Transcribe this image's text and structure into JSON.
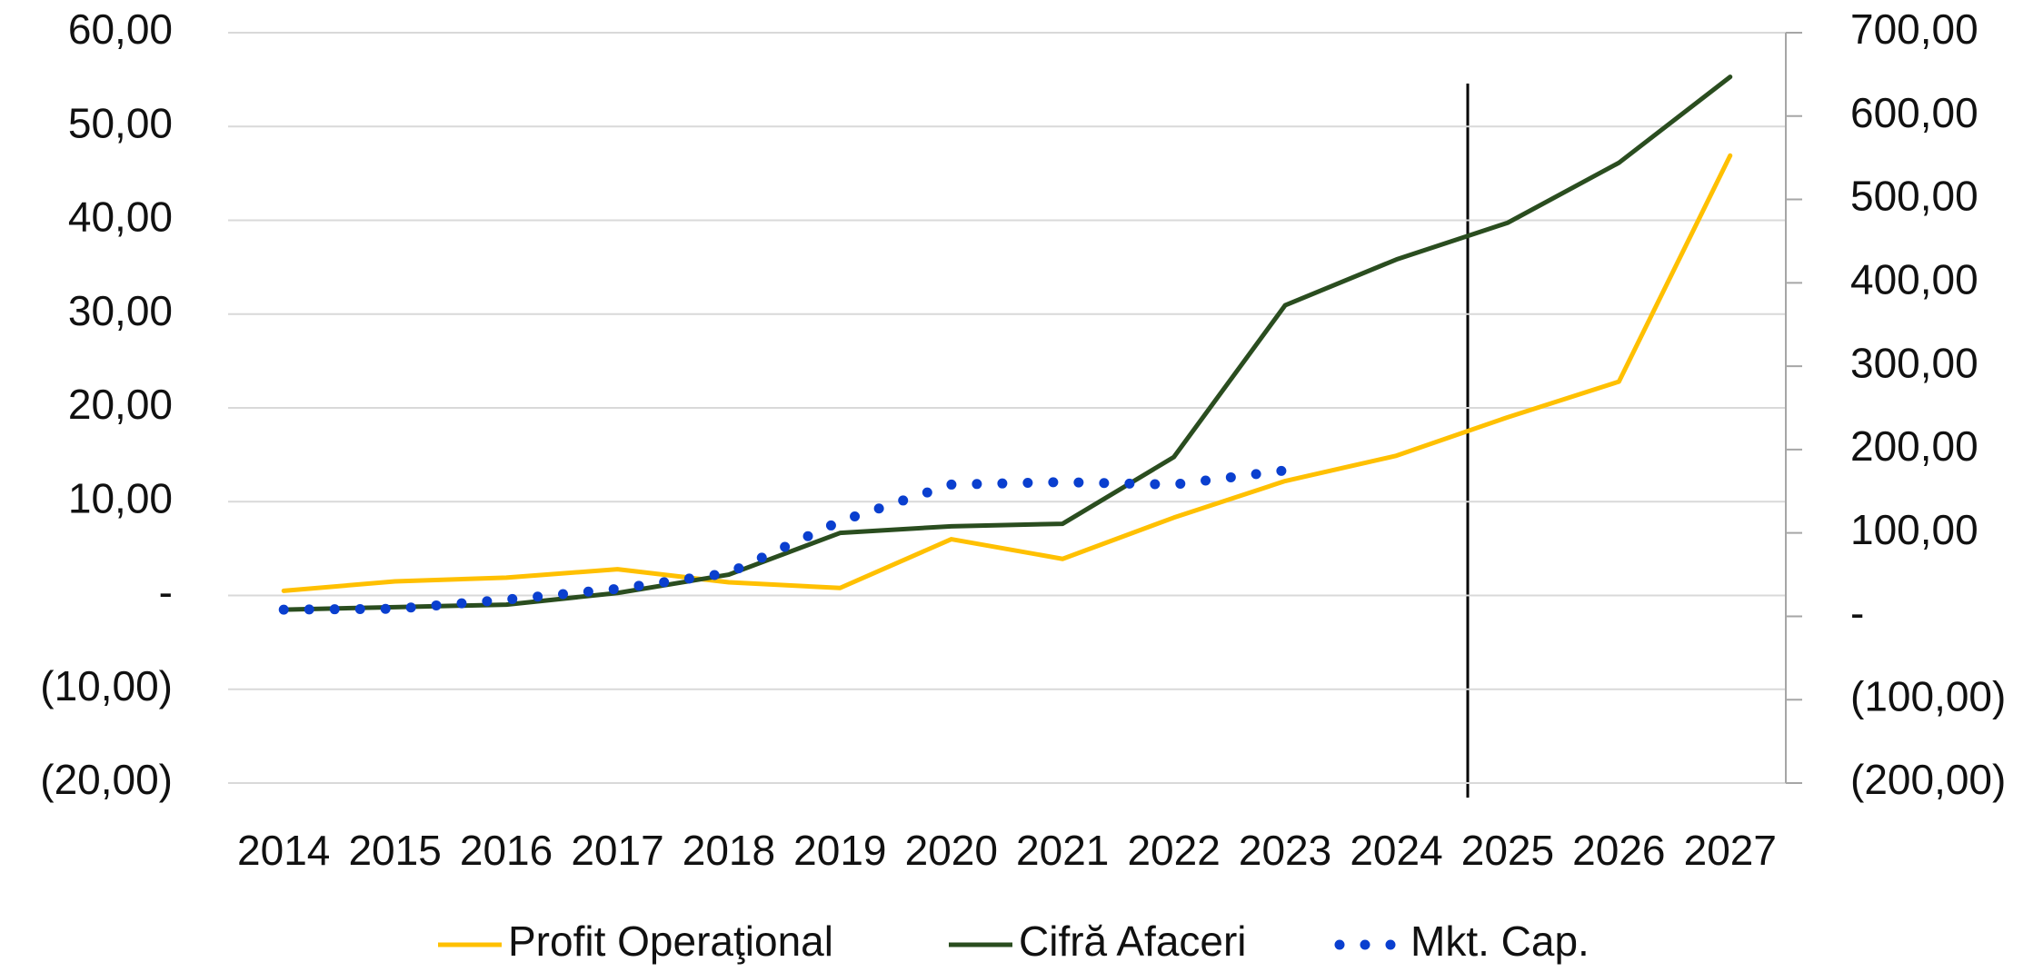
{
  "chart_data": {
    "type": "line",
    "categories": [
      "2014",
      "2015",
      "2016",
      "2017",
      "2018",
      "2019",
      "2020",
      "2021",
      "2022",
      "2023",
      "2024",
      "2025",
      "2026",
      "2027"
    ],
    "series": [
      {
        "name": "Profit Operaţional",
        "color": "#ffc000",
        "style": "solid",
        "values": [
          0.5,
          1.5,
          1.9,
          2.8,
          1.4,
          0.8,
          6.0,
          3.9,
          8.3,
          12.2,
          14.9,
          19.0,
          22.8,
          46.9
        ]
      },
      {
        "name": "Cifră Afaceri",
        "color": "#2a4d1f",
        "style": "solid",
        "axis": "y2",
        "values": [
          8,
          11,
          14,
          28,
          50,
          100,
          108,
          111,
          191,
          373,
          428,
          472,
          544,
          647
        ]
      },
      {
        "name": "Mkt. Cap.",
        "color": "#0a3fcf",
        "style": "dotted",
        "axis": "y2",
        "values": [
          8,
          9,
          20,
          33,
          52,
          114,
          158,
          161,
          158,
          175,
          null,
          null,
          null,
          null
        ]
      }
    ],
    "ylim": [
      -20,
      60
    ],
    "yticks": [
      {
        "value": -20,
        "label": "(20,00)"
      },
      {
        "value": -10,
        "label": "(10,00)"
      },
      {
        "value": 0,
        "label": "-"
      },
      {
        "value": 10,
        "label": "10,00"
      },
      {
        "value": 20,
        "label": "20,00"
      },
      {
        "value": 30,
        "label": "30,00"
      },
      {
        "value": 40,
        "label": "40,00"
      },
      {
        "value": 50,
        "label": "50,00"
      },
      {
        "value": 60,
        "label": "60,00"
      }
    ],
    "y2lim": [
      -200,
      700
    ],
    "y2ticks": [
      {
        "value": -200,
        "label": "(200,00)"
      },
      {
        "value": -100,
        "label": "(100,00)"
      },
      {
        "value": 0,
        "label": "-"
      },
      {
        "value": 100,
        "label": "100,00"
      },
      {
        "value": 200,
        "label": "200,00"
      },
      {
        "value": 300,
        "label": "300,00"
      },
      {
        "value": 400,
        "label": "400,00"
      },
      {
        "value": 500,
        "label": "500,00"
      },
      {
        "value": 600,
        "label": "600,00"
      },
      {
        "value": 700,
        "label": "700,00"
      }
    ],
    "grid": true,
    "legend": "bottom"
  }
}
